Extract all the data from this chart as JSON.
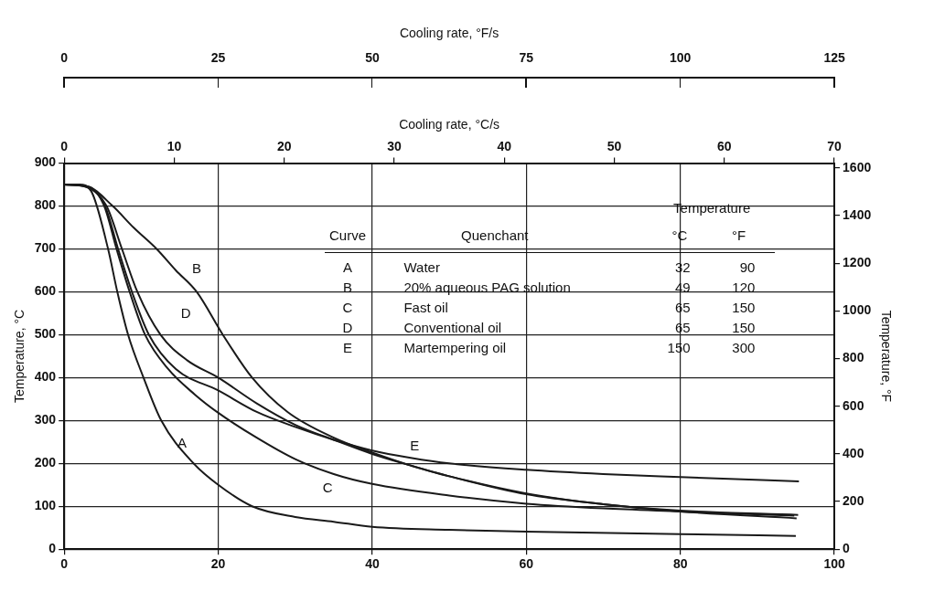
{
  "chart_data": {
    "type": "line",
    "ylabel": "Temperature, °C",
    "y2label": "Temperature, °F",
    "x2label": "Cooling rate, °C/s",
    "xlim": [
      0,
      100
    ],
    "xticks": [
      0,
      20,
      40,
      60,
      80,
      100
    ],
    "ylim": [
      0,
      900
    ],
    "yticks": [
      0,
      100,
      200,
      300,
      400,
      500,
      600,
      700,
      800,
      900
    ],
    "y2lim": [
      0,
      1620
    ],
    "y2ticks": [
      0,
      200,
      400,
      600,
      800,
      1000,
      1200,
      1400,
      1600
    ],
    "x2lim": [
      0,
      70
    ],
    "x2ticks": [
      0,
      10,
      20,
      30,
      40,
      50,
      60,
      70
    ],
    "grid": true,
    "legend": false,
    "marker": "none",
    "line_style": "solid",
    "series": [
      {
        "color": "#1a1a1a",
        "x": [
          0,
          2,
          3.5,
          5.7,
          6.9,
          8.3,
          10.3,
          12.6,
          16.8,
          20,
          24.4,
          30,
          35,
          40,
          50,
          60,
          80,
          95
        ],
        "values": [
          850,
          850,
          835,
          700,
          600,
          500,
          400,
          300,
          200,
          150,
          100,
          75,
          64,
          52,
          45,
          41,
          35,
          31
        ]
      },
      {
        "color": "#1a1a1a",
        "x": [
          0,
          3,
          6.3,
          9,
          12,
          14.5,
          17.2,
          20.6,
          24.4,
          29,
          35,
          40,
          45,
          50,
          60,
          70,
          80,
          95.3
        ],
        "values": [
          850,
          846,
          800,
          750,
          700,
          650,
          600,
          500,
          400,
          320,
          260,
          225,
          195,
          170,
          130,
          105,
          90,
          80
        ]
      },
      {
        "color": "#1a1a1a",
        "x": [
          0,
          3.2,
          5.2,
          6.8,
          8.5,
          10.5,
          13.5,
          17,
          20,
          25,
          30,
          35,
          40,
          50,
          60,
          70,
          80,
          94.8
        ],
        "values": [
          850,
          845,
          800,
          700,
          600,
          500,
          420,
          360,
          318,
          260,
          210,
          175,
          152,
          125,
          106,
          95,
          88,
          78
        ]
      },
      {
        "color": "#1a1a1a",
        "x": [
          0,
          3,
          5.5,
          7.5,
          9.5,
          12.5,
          16,
          20,
          25,
          30,
          35,
          40,
          45,
          50,
          60,
          70,
          80,
          95.1
        ],
        "values": [
          850,
          844,
          800,
          700,
          600,
          500,
          440,
          400,
          340,
          290,
          255,
          222,
          195,
          170,
          128,
          105,
          88,
          72
        ]
      },
      {
        "color": "#1a1a1a",
        "x": [
          0,
          2.8,
          5.3,
          7,
          8.8,
          11,
          14.5,
          20,
          25,
          30,
          35,
          40,
          45,
          50,
          60,
          70,
          80,
          95.4
        ],
        "values": [
          850,
          845,
          800,
          700,
          600,
          500,
          420,
          370,
          320,
          285,
          255,
          230,
          213,
          200,
          185,
          175,
          168,
          158
        ]
      }
    ],
    "annotations": [
      "A",
      "B",
      "C",
      "D",
      "E",
      "Temperature",
      "Curve",
      "Quenchant",
      "°C",
      "°F",
      "A",
      "Water",
      "32",
      "90",
      "B",
      "20% aqueous PAG solution",
      "49",
      "120",
      "C",
      "Fast oil",
      "65",
      "150",
      "D",
      "Conventional oil",
      "65",
      "150",
      "E",
      "Martempering oil",
      "150",
      "300",
      "Cooling rate, °F/s",
      "0",
      "25",
      "50",
      "75",
      "100",
      "125"
    ]
  }
}
